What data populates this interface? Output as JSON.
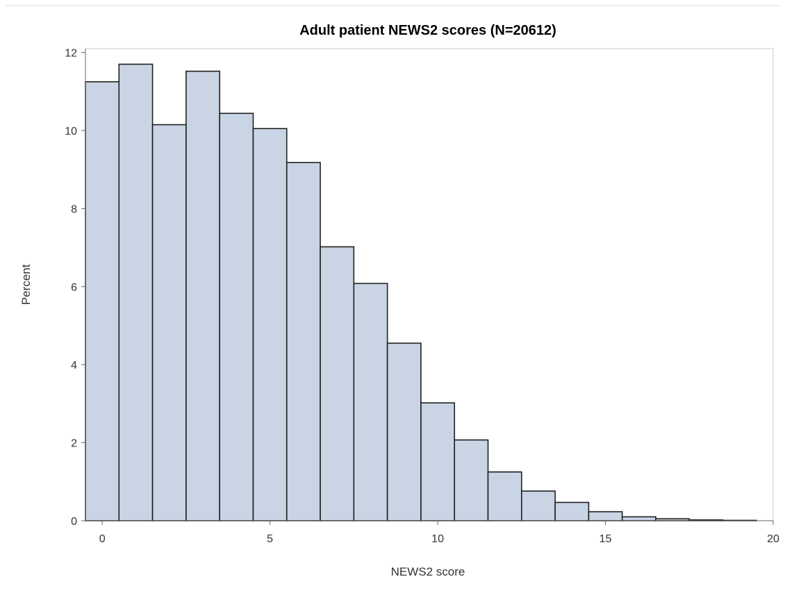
{
  "chart_data": {
    "type": "bar",
    "title": "Adult patient NEWS2 scores (N=20612)",
    "xlabel": "NEWS2 score",
    "ylabel": "Percent",
    "x_ticks": [
      0,
      5,
      10,
      15,
      20
    ],
    "y_ticks": [
      0,
      2,
      4,
      6,
      8,
      10,
      12
    ],
    "xlim": [
      -0.5,
      20
    ],
    "ylim": [
      0,
      12.1
    ],
    "bin_width": 1,
    "categories": [
      0,
      1,
      2,
      3,
      4,
      5,
      6,
      7,
      8,
      9,
      10,
      11,
      12,
      13,
      14,
      15,
      16,
      17,
      18,
      19
    ],
    "values": [
      11.25,
      11.7,
      10.15,
      11.52,
      10.44,
      10.05,
      9.18,
      7.02,
      6.08,
      4.55,
      3.02,
      2.07,
      1.25,
      0.76,
      0.47,
      0.23,
      0.1,
      0.05,
      0.02,
      0.01
    ],
    "bar_fill": "#c9d4e4",
    "bar_stroke": "#1f1f1f",
    "grid": false,
    "legend": "none"
  }
}
